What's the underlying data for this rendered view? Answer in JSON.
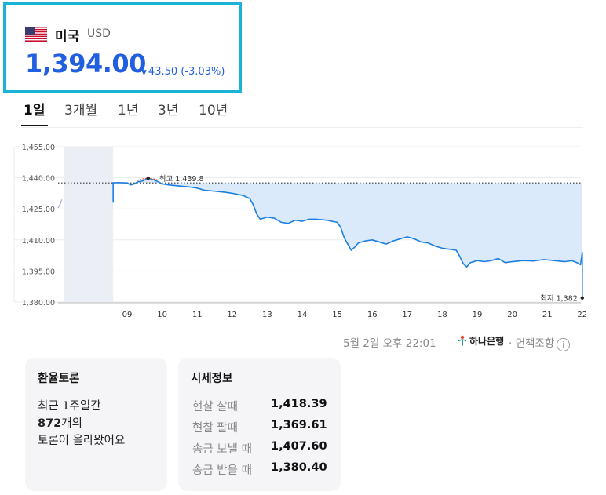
{
  "header": {
    "country": "미국",
    "currency": "USD",
    "price": "1,394.00",
    "change": "43.50 (-3.03%)",
    "change_direction": "down"
  },
  "tabs": [
    {
      "label": "1일",
      "active": true
    },
    {
      "label": "3개월",
      "active": false
    },
    {
      "label": "1년",
      "active": false
    },
    {
      "label": "3년",
      "active": false
    },
    {
      "label": "10년",
      "active": false
    }
  ],
  "chart_data": {
    "type": "line",
    "y_ticks": [
      "1,455.00",
      "1,440.00",
      "1,425.00",
      "1,410.00",
      "1,395.00",
      "1,380.00"
    ],
    "ylim": [
      1380,
      1455
    ],
    "x_ticks": [
      "09",
      "10",
      "11",
      "12",
      "13",
      "14",
      "15",
      "16",
      "17",
      "18",
      "19",
      "20",
      "21",
      "22"
    ],
    "xlim": [
      7.2,
      22.0
    ],
    "previous_close": 1437.5,
    "high_label": "최고 1,439.8",
    "high": {
      "x": 9.6,
      "y": 1439.8
    },
    "low_label": "최저 1,382",
    "low": {
      "x": 22.0,
      "y": 1382
    },
    "premarket_points": [
      [
        7.3,
        1425.5
      ],
      [
        7.36,
        1427.0
      ],
      [
        7.42,
        1429.5
      ]
    ],
    "series": [
      {
        "points": [
          [
            8.6,
            1428.0
          ],
          [
            8.6,
            1437.6
          ],
          [
            8.8,
            1437.6
          ],
          [
            9.0,
            1437.5
          ],
          [
            9.1,
            1436.5
          ],
          [
            9.2,
            1437.0
          ],
          [
            9.3,
            1438.0
          ],
          [
            9.45,
            1438.5
          ],
          [
            9.6,
            1439.8
          ],
          [
            9.75,
            1439.0
          ],
          [
            9.9,
            1438.0
          ],
          [
            10.0,
            1437.0
          ],
          [
            10.2,
            1436.5
          ],
          [
            10.5,
            1436.0
          ],
          [
            10.8,
            1435.5
          ],
          [
            11.0,
            1435.0
          ],
          [
            11.2,
            1434.0
          ],
          [
            11.5,
            1433.5
          ],
          [
            11.8,
            1433.0
          ],
          [
            12.0,
            1432.5
          ],
          [
            12.3,
            1431.5
          ],
          [
            12.5,
            1430.0
          ],
          [
            12.6,
            1427.0
          ],
          [
            12.7,
            1422.5
          ],
          [
            12.8,
            1420.0
          ],
          [
            13.0,
            1421.0
          ],
          [
            13.2,
            1420.5
          ],
          [
            13.4,
            1418.5
          ],
          [
            13.6,
            1418.0
          ],
          [
            13.8,
            1419.5
          ],
          [
            14.0,
            1419.0
          ],
          [
            14.2,
            1420.0
          ],
          [
            14.4,
            1420.0
          ],
          [
            14.7,
            1419.5
          ],
          [
            15.0,
            1418.5
          ],
          [
            15.1,
            1416.0
          ],
          [
            15.2,
            1411.0
          ],
          [
            15.3,
            1408.0
          ],
          [
            15.4,
            1405.0
          ],
          [
            15.5,
            1406.5
          ],
          [
            15.6,
            1408.5
          ],
          [
            15.8,
            1409.5
          ],
          [
            16.0,
            1410.0
          ],
          [
            16.2,
            1409.0
          ],
          [
            16.4,
            1408.0
          ],
          [
            16.6,
            1409.5
          ],
          [
            16.8,
            1410.5
          ],
          [
            17.0,
            1411.5
          ],
          [
            17.2,
            1410.5
          ],
          [
            17.4,
            1409.0
          ],
          [
            17.6,
            1408.5
          ],
          [
            17.8,
            1407.0
          ],
          [
            18.0,
            1406.0
          ],
          [
            18.2,
            1405.5
          ],
          [
            18.4,
            1405.0
          ],
          [
            18.5,
            1402.0
          ],
          [
            18.6,
            1398.5
          ],
          [
            18.7,
            1397.0
          ],
          [
            18.8,
            1399.0
          ],
          [
            19.0,
            1400.0
          ],
          [
            19.2,
            1399.5
          ],
          [
            19.4,
            1400.0
          ],
          [
            19.6,
            1401.0
          ],
          [
            19.8,
            1399.0
          ],
          [
            20.0,
            1399.5
          ],
          [
            20.3,
            1400.0
          ],
          [
            20.6,
            1399.8
          ],
          [
            20.9,
            1400.5
          ],
          [
            21.2,
            1400.0
          ],
          [
            21.5,
            1399.5
          ],
          [
            21.7,
            1400.0
          ],
          [
            21.85,
            1399.0
          ],
          [
            21.95,
            1398.0
          ],
          [
            22.0,
            1404.0
          ],
          [
            22.0,
            1390.0
          ],
          [
            22.0,
            1382.0
          ]
        ]
      }
    ],
    "colors": {
      "line": "#1b7fe0",
      "area": "#dbeafb",
      "premarket_shade": "#eceef6",
      "premarket_line": "#b7b0e0",
      "previous_close": "#333333",
      "high_marker": "#e74c3c"
    },
    "grid": true
  },
  "footer": {
    "timestamp": "5월 2일 오후 22:01",
    "bank": "하나은행",
    "disclaimer": "· 면책조항"
  },
  "forum_card": {
    "title": "환율토론",
    "line1": "최근 1주일간",
    "count": "872",
    "count_suffix": "개의",
    "line3": "토론이 올라왔어요"
  },
  "market_card": {
    "title": "시세정보",
    "rows": [
      {
        "label": "현찰 살때",
        "value": "1,418.39"
      },
      {
        "label": "현찰 팔때",
        "value": "1,369.61"
      },
      {
        "label": "송금 보낼 때",
        "value": "1,407.60"
      },
      {
        "label": "송금 받을 때",
        "value": "1,380.40"
      }
    ]
  }
}
